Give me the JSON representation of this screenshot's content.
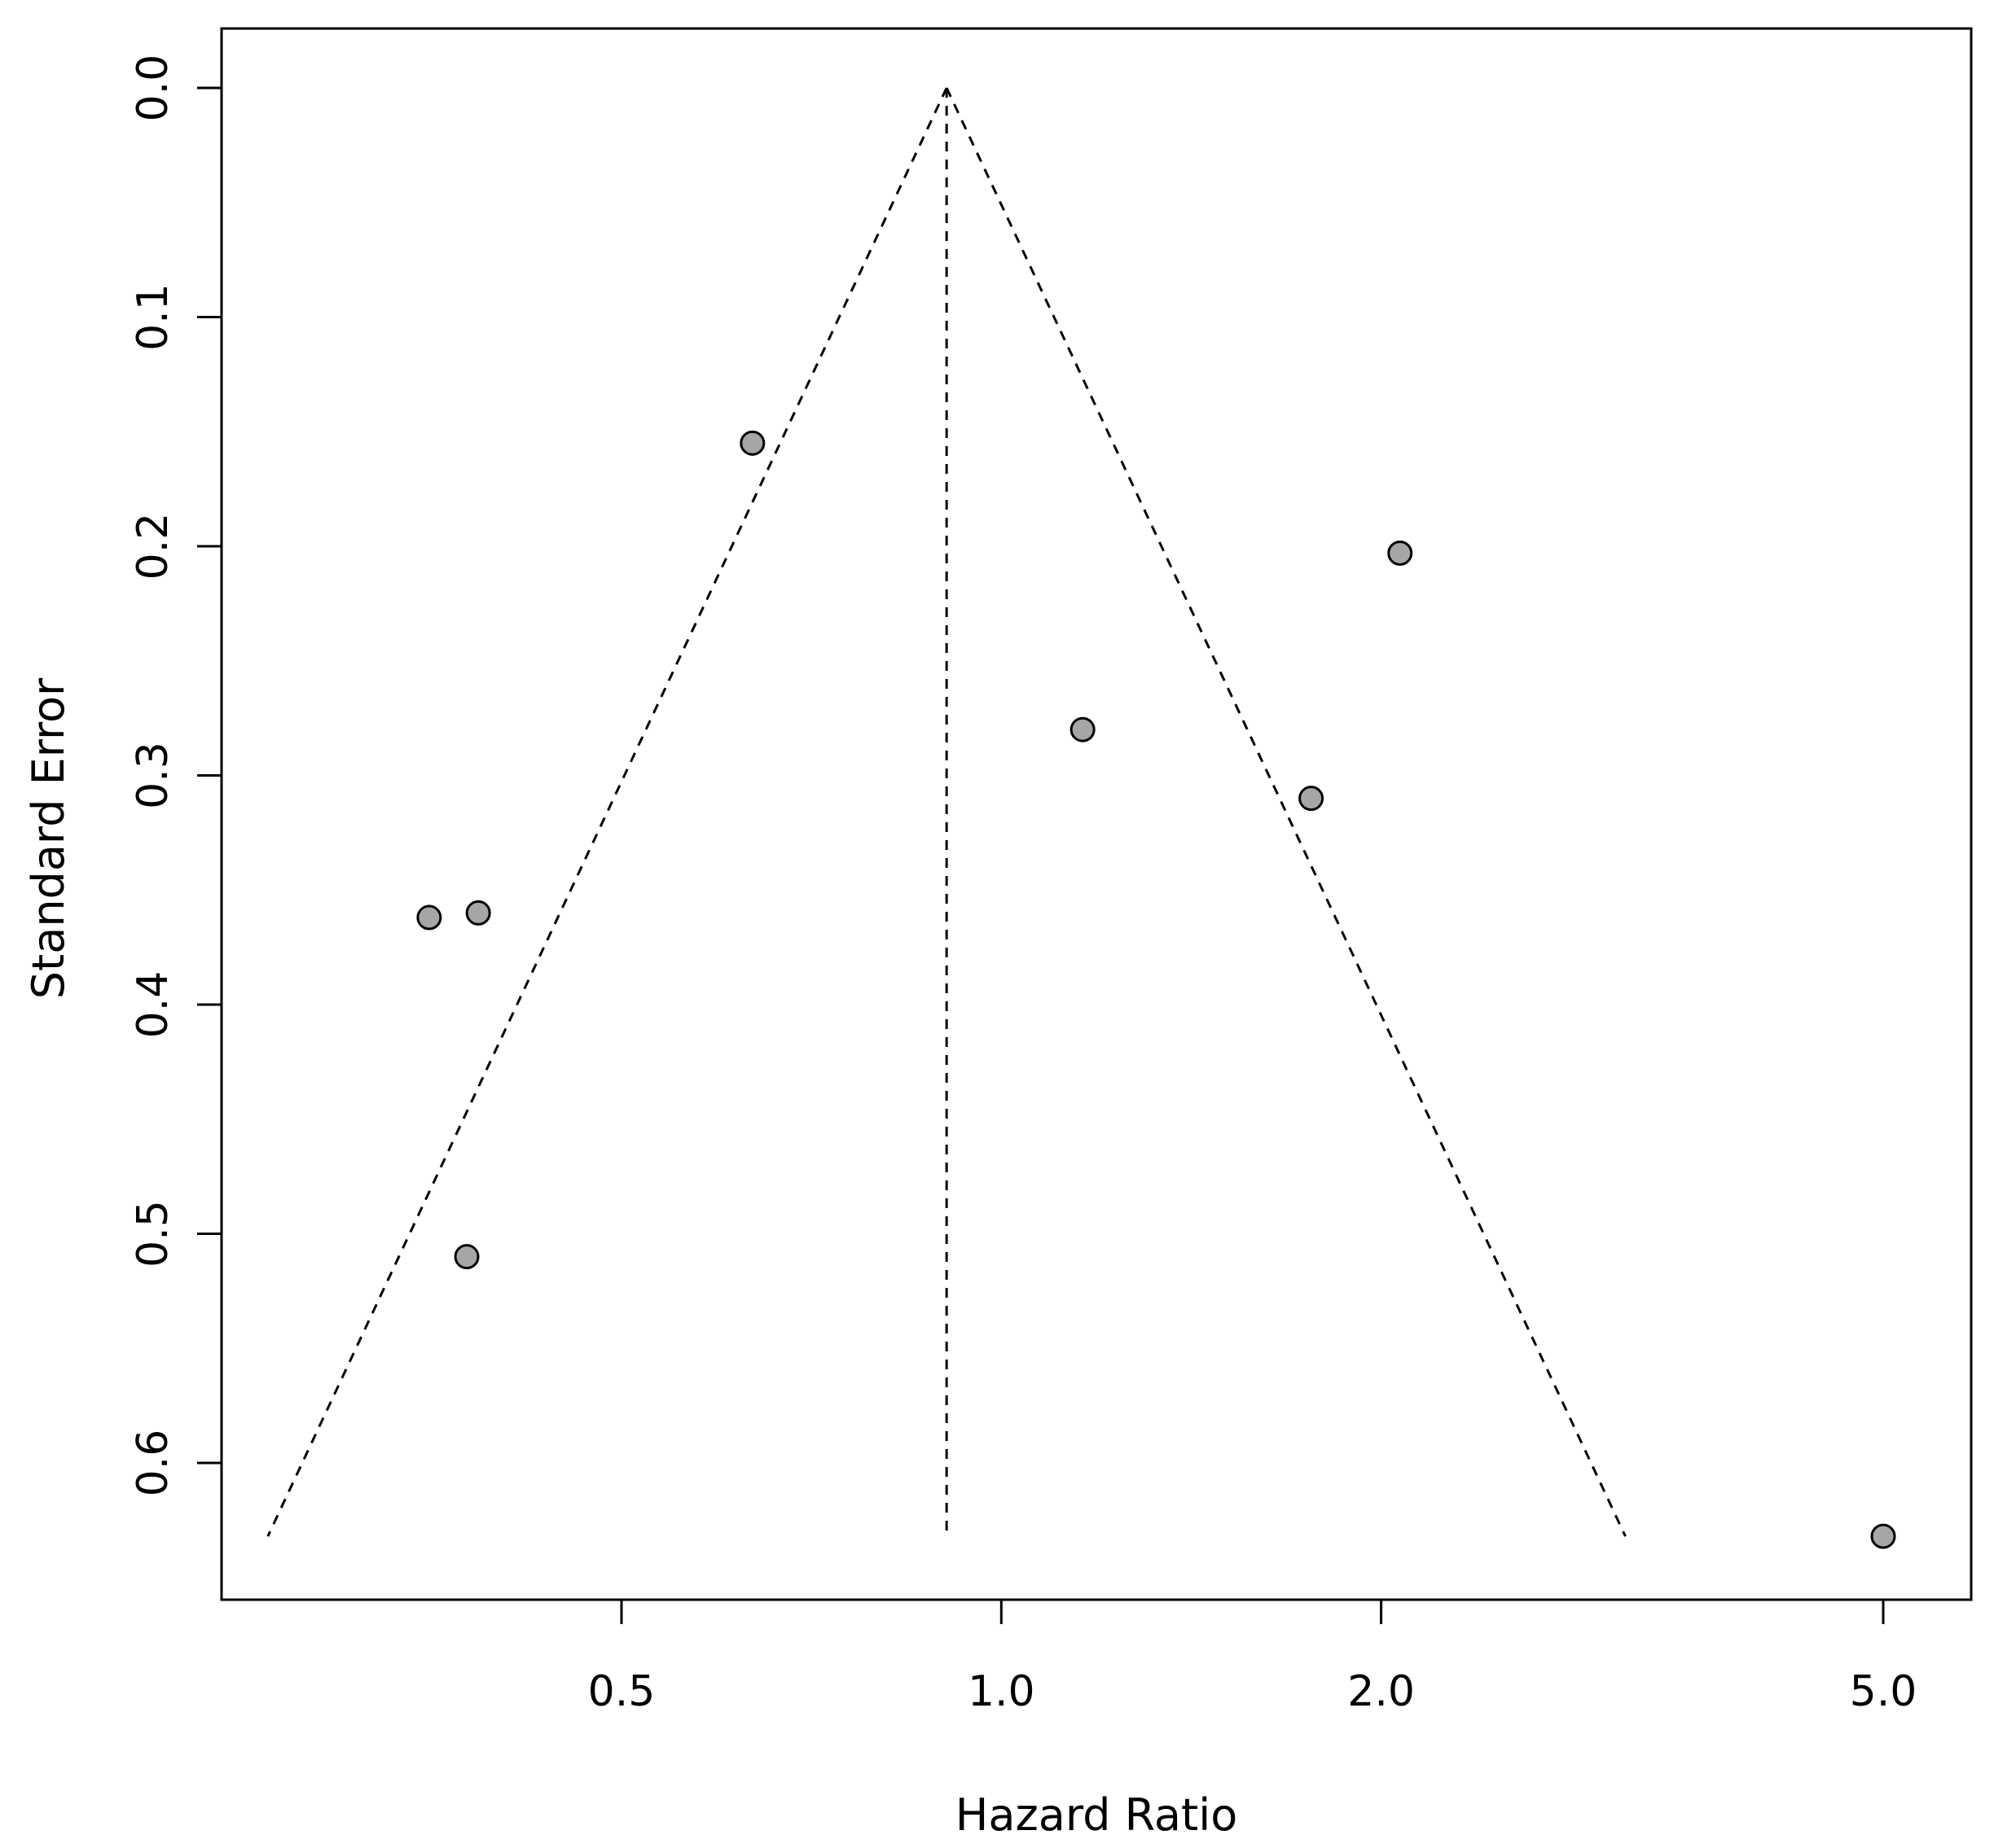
{
  "chart_data": {
    "type": "scatter",
    "subtype": "funnel-plot",
    "title": "",
    "xlabel": "Hazard Ratio",
    "ylabel": "Standard Error",
    "x_scale": "log",
    "y_reversed": true,
    "xlim": [
      0.28,
      6.35
    ],
    "ylim": [
      0.0,
      0.655
    ],
    "x_ticks": [
      0.5,
      1.0,
      2.0,
      5.0
    ],
    "x_tick_labels": [
      "0.5",
      "1.0",
      "2.0",
      "5.0"
    ],
    "y_ticks": [
      0.0,
      0.1,
      0.2,
      0.3,
      0.4,
      0.5,
      0.6
    ],
    "y_tick_labels": [
      "0.0",
      "0.1",
      "0.2",
      "0.3",
      "0.4",
      "0.5",
      "0.6"
    ],
    "grid": false,
    "legend": "none",
    "pooled_estimate": 0.905,
    "funnel_max_se": 0.632,
    "points": [
      {
        "x": 0.635,
        "y": 0.155
      },
      {
        "x": 2.07,
        "y": 0.203
      },
      {
        "x": 1.16,
        "y": 0.28
      },
      {
        "x": 1.76,
        "y": 0.31
      },
      {
        "x": 0.352,
        "y": 0.362
      },
      {
        "x": 0.385,
        "y": 0.36
      },
      {
        "x": 0.377,
        "y": 0.51
      },
      {
        "x": 5.0,
        "y": 0.632
      }
    ],
    "colors": {
      "point_fill": "#a6a6a6",
      "point_stroke": "#000000",
      "line": "#000000"
    }
  }
}
